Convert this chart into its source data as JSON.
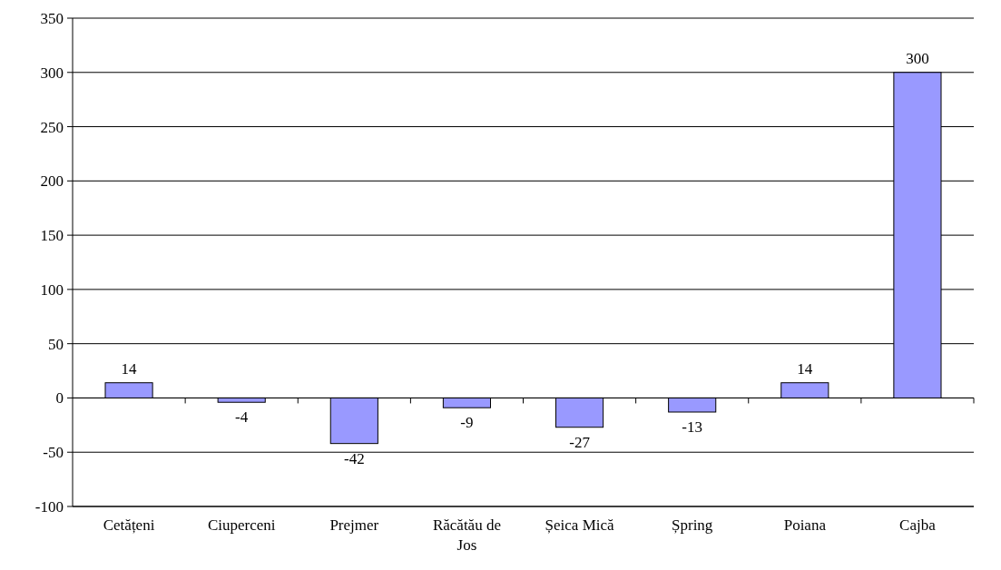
{
  "chart_data": {
    "type": "bar",
    "categories": [
      "Cetățeni",
      "Ciuperceni",
      "Prejmer",
      "Răcătău de Jos",
      "Șeica Mică",
      "Șpring",
      "Poiana",
      "Cajba"
    ],
    "values": [
      14,
      -4,
      -42,
      -9,
      -27,
      -13,
      14,
      300
    ],
    "color": "#9999ff",
    "ylim": [
      -100,
      350
    ],
    "yticks": [
      -100,
      -50,
      0,
      50,
      100,
      150,
      200,
      250,
      300,
      350
    ],
    "grid": "y",
    "data_labels": true
  }
}
